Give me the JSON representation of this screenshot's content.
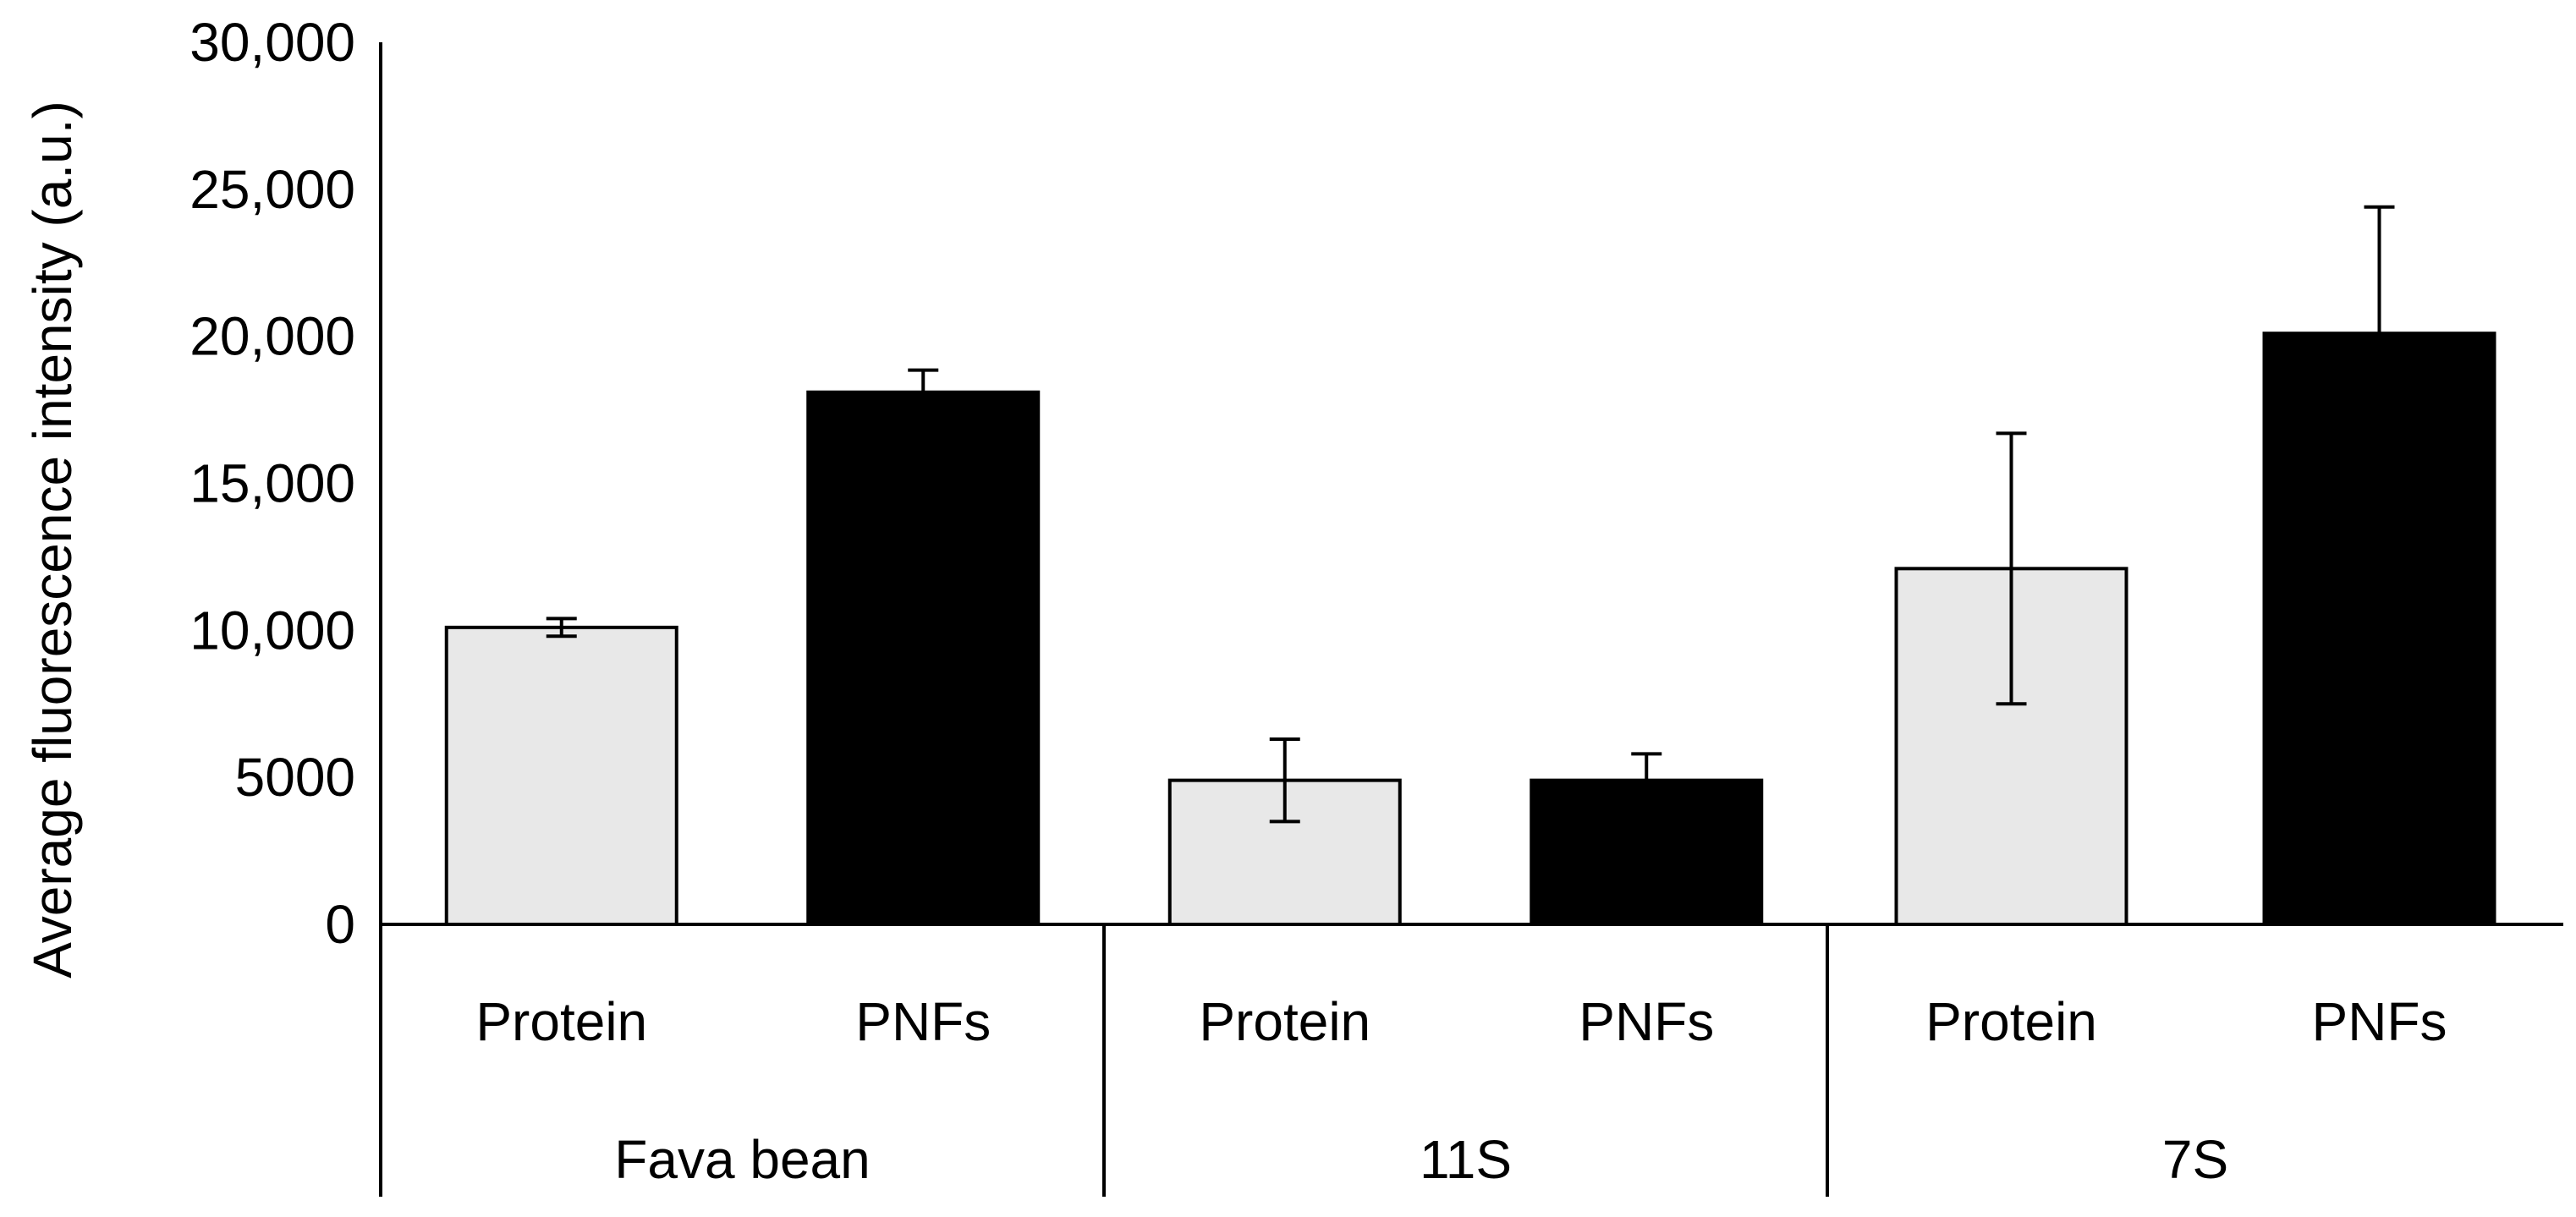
{
  "chart_data": {
    "type": "bar",
    "title": "",
    "xlabel": "",
    "ylabel": "Average fluorescence intensity (a.u.)",
    "ylim": [
      0,
      30000
    ],
    "y_ticks": [
      {
        "value": 0,
        "label": "0"
      },
      {
        "value": 5000,
        "label": "5000"
      },
      {
        "value": 10000,
        "label": "10,000"
      },
      {
        "value": 15000,
        "label": "15,000"
      },
      {
        "value": 20000,
        "label": "20,000"
      },
      {
        "value": 25000,
        "label": "25,000"
      },
      {
        "value": 30000,
        "label": "30,000"
      }
    ],
    "grid": false,
    "legend": "none",
    "groups": [
      {
        "name": "Fava bean",
        "bars": [
          {
            "label": "Protein",
            "value": 10100,
            "error": 300,
            "color": "#e8e8e8"
          },
          {
            "label": "PNFs",
            "value": 18100,
            "error": 750,
            "color": "#000000"
          }
        ]
      },
      {
        "name": "11S",
        "bars": [
          {
            "label": "Protein",
            "value": 4900,
            "error": 1400,
            "color": "#e8e8e8"
          },
          {
            "label": "PNFs",
            "value": 4900,
            "error": 900,
            "color": "#000000"
          }
        ]
      },
      {
        "name": "7S",
        "bars": [
          {
            "label": "Protein",
            "value": 12100,
            "error": 4600,
            "color": "#e8e8e8"
          },
          {
            "label": "PNFs",
            "value": 20100,
            "error": 4300,
            "color": "#000000"
          }
        ]
      }
    ]
  }
}
